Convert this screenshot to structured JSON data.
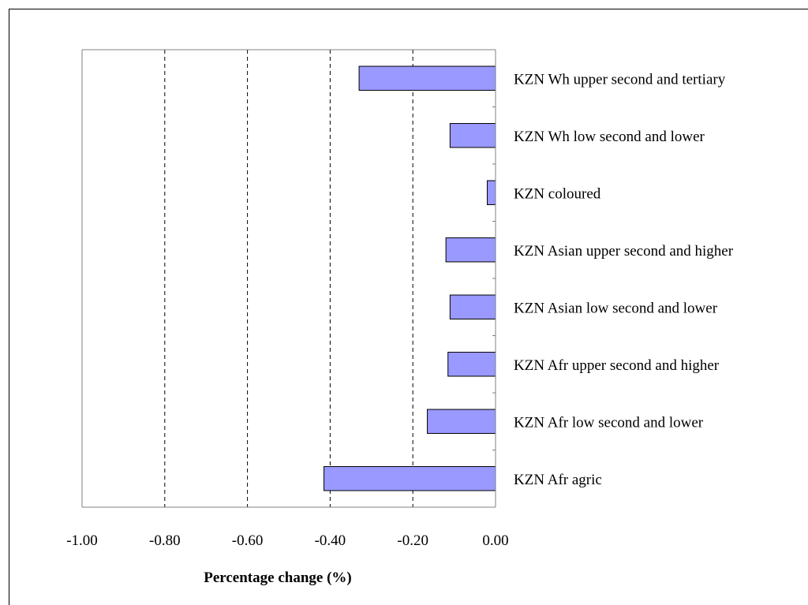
{
  "chart_data": {
    "type": "bar",
    "orientation": "horizontal",
    "categories": [
      "KZN Wh upper second and tertiary",
      "KZN Wh low second and lower",
      "KZN coloured",
      "KZN Asian upper second and higher",
      "KZN Asian low second and lower",
      "KZN Afr upper second and higher",
      "KZN Afr low second and lower",
      "KZN Afr agric"
    ],
    "values": [
      -0.33,
      -0.11,
      -0.02,
      -0.12,
      -0.11,
      -0.115,
      -0.165,
      -0.415
    ],
    "xlabel": "Percentage change (%)",
    "ylabel": "",
    "xlim": [
      -1.0,
      0.0
    ],
    "x_ticks": [
      "-1.00",
      "-0.80",
      "-0.60",
      "-0.40",
      "-0.20",
      "0.00"
    ],
    "grid": "vertical-dashed",
    "legend": "none",
    "colors": {
      "bar_fill": "#9999ff",
      "bar_stroke": "#000000",
      "axis": "#808080",
      "grid": "#000000",
      "frame": "#000000"
    }
  }
}
